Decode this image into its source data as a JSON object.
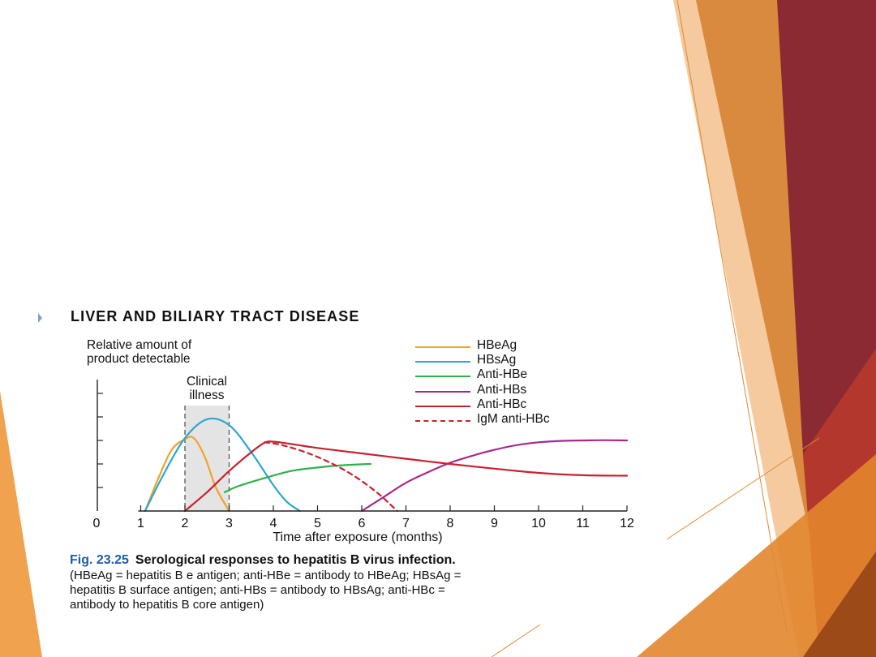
{
  "page": {
    "section_title": "LIVER AND BILIARY TRACT DISEASE"
  },
  "caption": {
    "figure_number": "Fig. 23.25",
    "title": "Serological responses to hepatitis B virus infection.",
    "body_line1": "(HBeAg = hepatitis B e antigen; anti-HBe = antibody to HBeAg; HBsAg =",
    "body_line2": "hepatitis B surface antigen; anti-HBs = antibody to HBsAg; anti-HBc =",
    "body_line3": "antibody to hepatitis B core antigen)"
  },
  "colors": {
    "deco_dark": "#8b2a32",
    "deco_orange": "#e2862d",
    "deco_light": "#f1b57b",
    "shade": "#e4e4e4"
  },
  "chart_data": {
    "type": "line",
    "ylabel_line1": "Relative amount of",
    "ylabel_line2": "product detectable",
    "xlabel": "Time after exposure (months)",
    "xlim": [
      0,
      12
    ],
    "ylim": [
      0,
      6
    ],
    "x_ticks": [
      "0",
      "1",
      "2",
      "3",
      "4",
      "5",
      "6",
      "7",
      "8",
      "9",
      "10",
      "11",
      "12"
    ],
    "shaded_region": {
      "label_line1": "Clinical",
      "label_line2": "illness",
      "x_range": [
        2,
        3
      ]
    },
    "legend_position": "top-right",
    "series": [
      {
        "name": "HBeAg",
        "color": "#f0a32a",
        "dash": false,
        "points": [
          [
            1.1,
            0
          ],
          [
            1.4,
            1.4
          ],
          [
            1.7,
            2.6
          ],
          [
            2.0,
            3.05
          ],
          [
            2.2,
            3.1
          ],
          [
            2.45,
            2.3
          ],
          [
            2.7,
            1.0
          ],
          [
            3.0,
            0
          ]
        ]
      },
      {
        "name": "HBsAg",
        "color": "#2aa6d2",
        "dash": false,
        "points": [
          [
            1.1,
            0
          ],
          [
            1.5,
            1.5
          ],
          [
            2.0,
            3.1
          ],
          [
            2.5,
            3.9
          ],
          [
            3.0,
            3.65
          ],
          [
            3.5,
            2.5
          ],
          [
            4.0,
            1.1
          ],
          [
            4.3,
            0.4
          ],
          [
            4.6,
            0
          ]
        ]
      },
      {
        "name": "Anti-HBe",
        "color": "#2db04b",
        "dash": false,
        "points": [
          [
            2.9,
            0.8
          ],
          [
            3.2,
            1.05
          ],
          [
            3.8,
            1.4
          ],
          [
            4.4,
            1.7
          ],
          [
            5.0,
            1.85
          ],
          [
            5.6,
            1.95
          ],
          [
            6.2,
            2.0
          ]
        ]
      },
      {
        "name": "Anti-HBs",
        "color": "#a8288e",
        "dash": false,
        "points": [
          [
            6.0,
            0
          ],
          [
            6.5,
            0.6
          ],
          [
            7.0,
            1.2
          ],
          [
            7.5,
            1.65
          ],
          [
            8.0,
            2.05
          ],
          [
            8.5,
            2.35
          ],
          [
            9.0,
            2.6
          ],
          [
            9.5,
            2.8
          ],
          [
            10.0,
            2.92
          ],
          [
            10.5,
            2.98
          ],
          [
            11.0,
            3.0
          ],
          [
            11.5,
            3.01
          ],
          [
            12.0,
            3.0
          ]
        ]
      },
      {
        "name": "Anti-HBc",
        "color": "#c8202e",
        "dash": false,
        "points": [
          [
            2.0,
            0
          ],
          [
            2.5,
            0.8
          ],
          [
            3.0,
            1.7
          ],
          [
            3.5,
            2.5
          ],
          [
            3.8,
            2.9
          ],
          [
            4.0,
            2.95
          ],
          [
            4.5,
            2.82
          ],
          [
            5.0,
            2.68
          ],
          [
            6.0,
            2.45
          ],
          [
            7.0,
            2.22
          ],
          [
            8.0,
            2.0
          ],
          [
            9.0,
            1.8
          ],
          [
            10.0,
            1.62
          ],
          [
            11.0,
            1.52
          ],
          [
            12.0,
            1.5
          ]
        ]
      },
      {
        "name": "IgM anti-HBc",
        "color": "#c8202e",
        "dash": true,
        "points": [
          [
            3.8,
            2.92
          ],
          [
            4.2,
            2.8
          ],
          [
            4.8,
            2.45
          ],
          [
            5.4,
            1.95
          ],
          [
            5.9,
            1.4
          ],
          [
            6.4,
            0.7
          ],
          [
            6.8,
            0
          ]
        ]
      }
    ]
  }
}
